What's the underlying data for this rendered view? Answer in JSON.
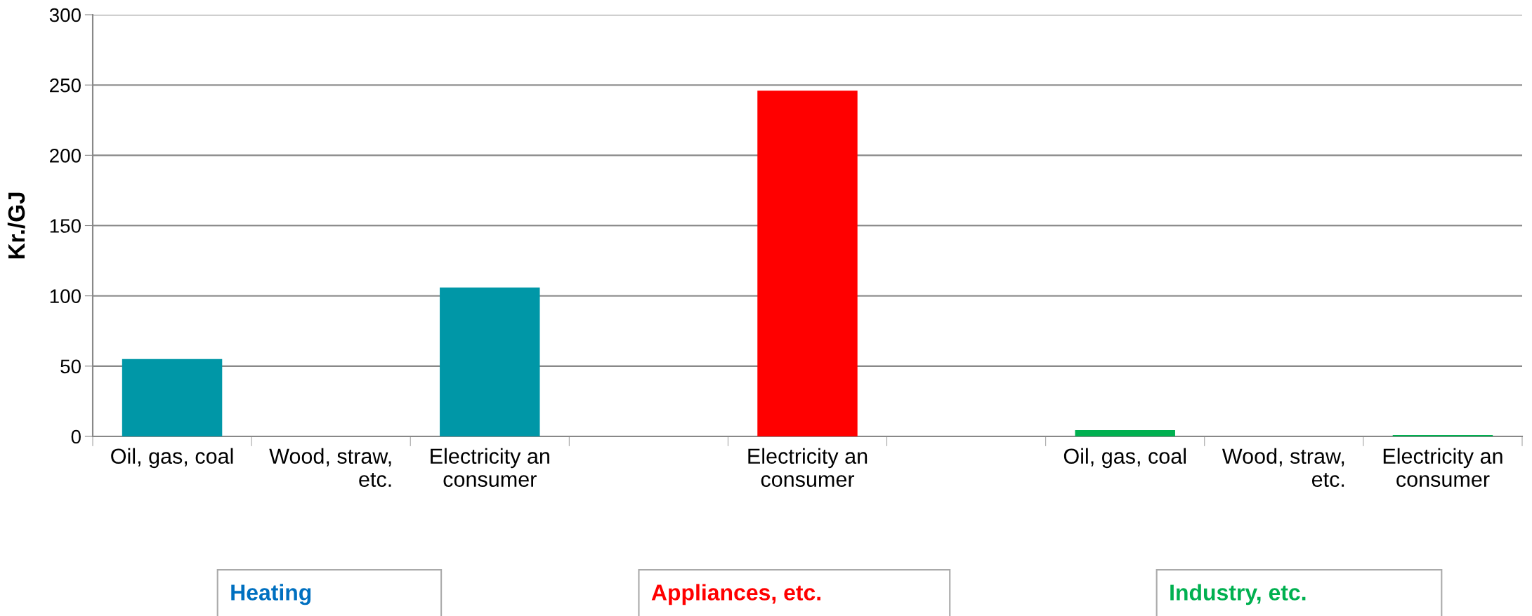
{
  "chart_data": {
    "type": "bar",
    "ylabel": "Kr./GJ",
    "categories": [
      "Oil, gas, coal",
      "Wood, straw,\netc.",
      "Electricity an\nconsumer",
      null,
      "Electricity an\nconsumer",
      null,
      "Oil, gas, coal",
      "Wood, straw,\netc.",
      "Electricity an\nconsumer"
    ],
    "values": [
      55,
      0,
      106,
      null,
      246,
      null,
      4.5,
      0,
      1
    ],
    "colors": [
      "#0097a7",
      "#0097a7",
      "#0097a7",
      "#ff0000",
      "#ff0000",
      "#00b050",
      "#00b050",
      "#00b050",
      "#00b050"
    ],
    "ylim": [
      0,
      300
    ],
    "yticks": [
      0,
      50,
      100,
      150,
      200,
      250,
      300
    ],
    "grid": "y",
    "annotations": [
      "Heating",
      "Appliances, etc.",
      "Industry, etc."
    ]
  }
}
